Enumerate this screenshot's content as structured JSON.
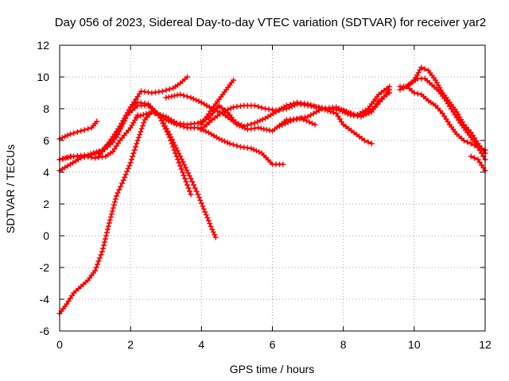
{
  "chart_data": {
    "type": "scatter",
    "title": "Day 056 of 2023, Sidereal Day-to-day VTEC variation (SDTVAR) for receiver yar2",
    "xlabel": "GPS time / hours",
    "ylabel": "SDTVAR / TECUs",
    "xlim": [
      0,
      12
    ],
    "ylim": [
      -6,
      12
    ],
    "xticks": [
      0,
      2,
      4,
      6,
      8,
      10,
      12
    ],
    "yticks": [
      -6,
      -4,
      -2,
      0,
      2,
      4,
      6,
      8,
      10,
      12
    ],
    "grid": true,
    "marker": "+",
    "color": "#ff0000",
    "series": [
      {
        "name": "s1",
        "x": [
          0,
          0.3,
          0.6,
          0.9,
          1.05
        ],
        "y": [
          6.1,
          6.4,
          6.6,
          6.8,
          7.2
        ]
      },
      {
        "name": "s2",
        "x": [
          0,
          0.4,
          0.8,
          1.2,
          1.6,
          1.9,
          2.2,
          2.5,
          2.8,
          3.1,
          3.4,
          3.7,
          3.9,
          4.1,
          4.3,
          4.4
        ],
        "y": [
          4.8,
          5.0,
          5.1,
          5.4,
          6.2,
          7.6,
          8.2,
          8.2,
          7.6,
          6.4,
          5.0,
          3.6,
          2.6,
          1.5,
          0.4,
          -0.1
        ]
      },
      {
        "name": "s3",
        "x": [
          0,
          0.3,
          0.6,
          0.9,
          1.2,
          1.5,
          1.8,
          2.0,
          2.2,
          2.5,
          2.8,
          3.1,
          3.3,
          3.5,
          3.7
        ],
        "y": [
          4.1,
          4.5,
          4.9,
          5.1,
          5.3,
          5.9,
          7.2,
          8.1,
          8.4,
          8.3,
          7.6,
          6.2,
          5.0,
          3.8,
          2.6
        ]
      },
      {
        "name": "s4",
        "x": [
          0,
          0.3,
          0.7,
          1.0,
          1.3,
          1.5,
          1.7,
          2.0,
          2.2
        ],
        "y": [
          4.8,
          5.0,
          5.0,
          4.9,
          5.0,
          5.3,
          6.0,
          6.8,
          7.6
        ]
      },
      {
        "name": "s5",
        "x": [
          1.1,
          1.4,
          1.7,
          2.0,
          2.3,
          2.6,
          2.9,
          3.2,
          3.4,
          3.6
        ],
        "y": [
          5.0,
          5.9,
          6.9,
          8.1,
          9.1,
          9.0,
          9.1,
          9.3,
          9.6,
          10.0
        ]
      },
      {
        "name": "s6",
        "x": [
          0,
          0.2,
          0.4,
          0.6,
          0.8,
          1.0,
          1.2,
          1.4,
          1.6,
          1.8,
          2.0,
          2.2,
          2.4,
          2.6,
          2.8,
          3.0,
          3.3,
          3.6,
          3.9,
          4.2,
          4.5,
          4.8,
          5.1,
          5.4,
          5.7,
          6.0,
          6.3
        ],
        "y": [
          -4.9,
          -4.3,
          -3.6,
          -3.2,
          -2.8,
          -2.2,
          -1.0,
          0.8,
          2.5,
          3.5,
          4.6,
          6.0,
          7.3,
          7.8,
          7.6,
          7.3,
          7.0,
          6.8,
          6.8,
          6.5,
          6.1,
          5.8,
          5.6,
          5.5,
          5.2,
          4.5,
          4.5
        ]
      },
      {
        "name": "s7",
        "x": [
          2.2,
          2.6,
          3.0,
          3.3,
          3.6,
          3.9,
          4.2,
          4.5,
          4.8,
          5.0,
          5.3,
          5.6,
          6.0,
          6.4,
          6.8,
          7.2
        ],
        "y": [
          7.5,
          7.8,
          7.5,
          7.1,
          7.0,
          7.1,
          7.4,
          8.2,
          7.6,
          7.0,
          6.7,
          6.8,
          6.6,
          7.3,
          7.4,
          7.0
        ]
      },
      {
        "name": "s8",
        "x": [
          3.0,
          3.4,
          3.7,
          4.0,
          4.3,
          4.6,
          4.9,
          5.2,
          5.5,
          5.8,
          6.1,
          6.4,
          6.7,
          7.0,
          7.4,
          7.8,
          8.0,
          8.3,
          8.6,
          8.8
        ],
        "y": [
          8.7,
          8.9,
          8.7,
          8.4,
          8.0,
          7.7,
          7.2,
          6.9,
          7.1,
          7.4,
          7.8,
          8.2,
          8.4,
          8.3,
          8.0,
          7.7,
          7.0,
          6.5,
          6.0,
          5.8
        ]
      },
      {
        "name": "s9",
        "x": [
          4.0,
          4.3,
          4.6,
          4.9,
          5.2,
          5.5,
          5.8,
          6.1,
          6.4,
          6.7,
          7.0,
          7.3,
          7.6,
          7.9,
          8.2,
          8.5,
          8.8,
          9.0,
          9.3
        ],
        "y": [
          6.7,
          7.3,
          7.8,
          8.1,
          8.2,
          8.2,
          8.0,
          7.9,
          8.0,
          8.3,
          8.2,
          8.1,
          8.0,
          7.9,
          7.6,
          7.5,
          7.8,
          8.5,
          9.0
        ]
      },
      {
        "name": "s10",
        "x": [
          4.0,
          4.3,
          4.6,
          4.9
        ],
        "y": [
          7.0,
          8.0,
          8.9,
          9.8
        ]
      },
      {
        "name": "s11",
        "x": [
          6.2,
          6.6,
          7.0,
          7.4,
          7.8,
          8.1,
          8.4,
          8.7,
          9.0,
          9.3
        ],
        "y": [
          6.9,
          7.3,
          7.5,
          8.0,
          8.1,
          7.8,
          7.6,
          8.0,
          8.9,
          9.4
        ]
      },
      {
        "name": "s12",
        "x": [
          8.0,
          8.3,
          8.6,
          8.9,
          9.1,
          9.3
        ],
        "y": [
          7.9,
          7.6,
          7.7,
          8.1,
          8.6,
          9.2
        ]
      },
      {
        "name": "s13",
        "x": [
          9.7,
          9.9,
          10.1,
          10.3,
          10.5,
          10.7,
          10.9,
          11.1,
          11.3,
          11.5,
          11.7,
          11.9,
          12.0
        ],
        "y": [
          9.3,
          9.6,
          9.9,
          9.9,
          9.5,
          9.1,
          8.5,
          7.8,
          7.1,
          6.5,
          5.9,
          5.2,
          4.8
        ]
      },
      {
        "name": "s14",
        "x": [
          9.6,
          9.8,
          10.0,
          10.2,
          10.4,
          10.6,
          10.8,
          11.0,
          11.2,
          11.4,
          11.6,
          11.8,
          12.0
        ],
        "y": [
          9.4,
          9.4,
          9.0,
          8.9,
          8.5,
          8.2,
          7.7,
          7.0,
          6.4,
          6.0,
          5.8,
          5.6,
          5.4
        ]
      },
      {
        "name": "s15",
        "x": [
          9.6,
          9.8,
          10.0,
          10.2,
          10.4,
          10.6,
          10.8,
          11.0,
          11.2,
          11.4,
          11.6,
          11.8,
          12.0
        ],
        "y": [
          9.2,
          9.4,
          9.8,
          10.6,
          10.4,
          9.8,
          9.0,
          8.4,
          7.8,
          7.0,
          6.5,
          5.8,
          5.2
        ]
      },
      {
        "name": "s16",
        "x": [
          11.6,
          11.8,
          12.0
        ],
        "y": [
          5.0,
          4.8,
          4.1
        ]
      }
    ]
  }
}
